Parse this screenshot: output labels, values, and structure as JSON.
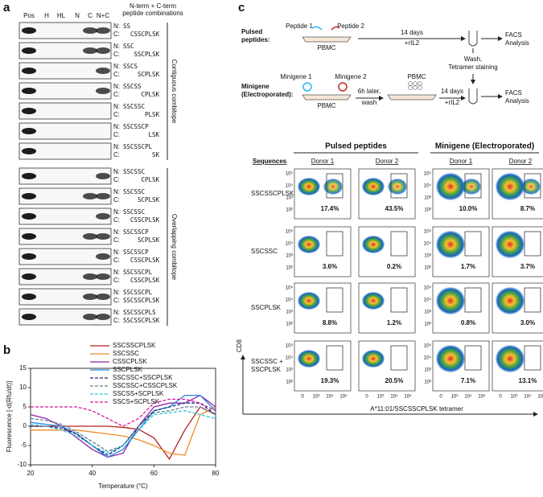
{
  "panel_a": {
    "label": "a",
    "header": [
      "N-term + C-term",
      "peptide combinations"
    ],
    "columns": [
      "Pos",
      "H",
      "HL",
      "N",
      "C",
      "N+C"
    ],
    "n_prefix": "N:",
    "c_prefix": "C:",
    "groups": [
      {
        "name": "Contiguous combitope",
        "rows": [
          {
            "n": "SS",
            "c": "CSSCPLSK"
          },
          {
            "n": "SSC",
            "c": "SSCPLSK"
          },
          {
            "n": "SSCS",
            "c": "SCPLSK"
          },
          {
            "n": "SSCSS",
            "c": "CPLSK"
          },
          {
            "n": "SSCSSC",
            "c": "PLSK"
          },
          {
            "n": "SSCSSCP",
            "c": "LSK"
          },
          {
            "n": "SSCSSCPL",
            "c": "SK"
          }
        ]
      },
      {
        "name": "Overlapping combitope",
        "rows": [
          {
            "n": "SSCSSC",
            "c": "CPLSK"
          },
          {
            "n": "SSCSSC",
            "c": "SCPLSK"
          },
          {
            "n": "SSCSSC",
            "c": "CSSCPLSK"
          },
          {
            "n": "SSCSSCP",
            "c": "SCPLSK"
          },
          {
            "n": "SSCSSCP",
            "c": "CSSCPLSK"
          },
          {
            "n": "SSCSSCPL",
            "c": "CSSCPLSK"
          },
          {
            "n": "SSCSSCPL",
            "c": "SSCSSCPLSK"
          },
          {
            "n": "SSCSSCPLS",
            "c": "SSCSSCPLSK"
          }
        ]
      }
    ]
  },
  "chart_data": {
    "type": "line",
    "panel_label": "b",
    "xlabel": "Temperature (°C)",
    "ylabel": "Fluorescence [-d(Rfu/dt)]",
    "x": [
      20,
      25,
      30,
      35,
      40,
      45,
      50,
      55,
      60,
      65,
      70,
      75,
      80
    ],
    "xlim": [
      20,
      80
    ],
    "xticks": [
      20,
      40,
      60,
      80
    ],
    "ylim": [
      -10,
      15
    ],
    "yticks": [
      -10,
      -5,
      0,
      5,
      10,
      15
    ],
    "series": [
      {
        "name": "SSCSSCPLSK",
        "color": "#b22222",
        "dashed": false,
        "values": [
          0,
          0,
          0,
          0,
          0,
          0,
          -0.3,
          -0.8,
          -3,
          -8.5,
          -1,
          5,
          3
        ]
      },
      {
        "name": "SSCSSC",
        "color": "#f28c28",
        "dashed": false,
        "values": [
          -1,
          -1,
          -1,
          -1,
          -1.5,
          -2,
          -2.5,
          -3.5,
          -5,
          -7,
          -7.5,
          3,
          5
        ]
      },
      {
        "name": "CSSCPLSK",
        "color": "#8e24aa",
        "dashed": false,
        "values": [
          3,
          2,
          0,
          -3,
          -6,
          -8,
          -7,
          0,
          5,
          6,
          6,
          8,
          5
        ]
      },
      {
        "name": "SSCPLSK",
        "color": "#1e88e5",
        "dashed": false,
        "values": [
          1,
          0.5,
          0,
          -2,
          -5,
          -8,
          -6,
          -1,
          4,
          5,
          8,
          8,
          4
        ]
      },
      {
        "name": "SSCSSC+SSCPLSK",
        "color": "#1a237e",
        "dashed": true,
        "values": [
          0,
          0,
          -0.5,
          -2,
          -5,
          -7.5,
          -5,
          0,
          4,
          5,
          6,
          6,
          3
        ]
      },
      {
        "name": "SSCSSC+CSSCPLSK",
        "color": "#607d8b",
        "dashed": true,
        "values": [
          2,
          1.5,
          0.5,
          -1.5,
          -4,
          -6.5,
          -5,
          0,
          3.5,
          4,
          5,
          5,
          3
        ]
      },
      {
        "name": "SSCSS+SCPLSK",
        "color": "#26c6da",
        "dashed": true,
        "values": [
          0.5,
          0,
          -1,
          -2.5,
          -5,
          -7,
          -5,
          -1,
          3,
          3.5,
          4,
          3,
          2
        ]
      },
      {
        "name": "SSCS+SCPLSK",
        "color": "#d81b9a",
        "dashed": true,
        "values": [
          5,
          5,
          5,
          5,
          4,
          2,
          0,
          2,
          6,
          7,
          7,
          6,
          4
        ]
      }
    ]
  },
  "panel_c": {
    "label": "c",
    "pulsed_label": [
      "Pulsed",
      "peptides:"
    ],
    "peptide1": "Peptide 1",
    "peptide2": "Peptide 2",
    "pbmc": "PBMC",
    "days": "14 days",
    "ril2": "+rIL2",
    "facs": [
      "FACS",
      "Analysis"
    ],
    "wash_stain": [
      "Wash,",
      "Tetramer staining"
    ],
    "minigene_label": [
      "Minigene",
      "(Electroporated):"
    ],
    "minigene1": "Minigene 1",
    "minigene2": "Minigene 2",
    "later_wash": [
      "6h later,",
      "wash"
    ],
    "group_headers": [
      "Pulsed peptides",
      "Minigene (Electroporated)"
    ],
    "sequences_header": "Sequences",
    "donors": [
      "Donor 1",
      "Donor 2",
      "Donor 1",
      "Donor 2"
    ],
    "rows": [
      {
        "label": [
          "SSCSSCPLSK"
        ],
        "percents": [
          "17.4%",
          "43.5%",
          "10.0%",
          "8.7%"
        ]
      },
      {
        "label": [
          "SSCSSC"
        ],
        "percents": [
          "3.6%",
          "0.2%",
          "1.7%",
          "3.7%"
        ]
      },
      {
        "label": [
          "SSCPLSK"
        ],
        "percents": [
          "8.8%",
          "1.2%",
          "0.8%",
          "3.0%"
        ]
      },
      {
        "label": [
          "SSCSSC +",
          "SSCPLSK"
        ],
        "percents": [
          "19.3%",
          "20.5%",
          "7.1%",
          "13.1%"
        ]
      }
    ],
    "y_ticks": [
      "10⁵",
      "10⁴",
      "10³",
      "10²"
    ],
    "x_ticks": [
      "0",
      "10³",
      "10⁴",
      "10⁵"
    ],
    "y_axis": "CD8",
    "x_axis": "A*11:01/SSCSSCPLSK tetramer"
  }
}
